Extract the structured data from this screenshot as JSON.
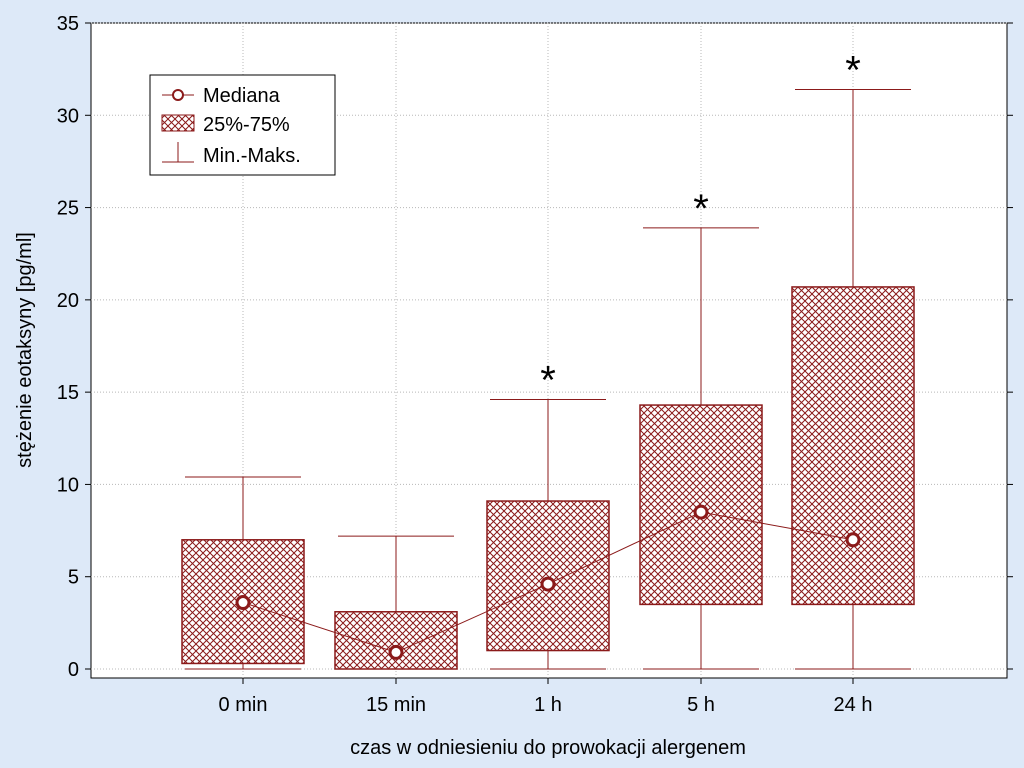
{
  "chart_data": {
    "type": "box",
    "xlabel": "czas w odniesieniu do prowokacji alergenem",
    "ylabel": "stężenie eotaksyny [pg/ml]",
    "ylim": [
      0,
      35
    ],
    "yticks": [
      "0",
      "5",
      "10",
      "15",
      "20",
      "25",
      "30",
      "35"
    ],
    "grid": true,
    "legend_position": "top-left",
    "legend": {
      "median": "Mediana",
      "box": "25%-75%",
      "whisker": "Min.-Maks."
    },
    "significance_marker": "*",
    "color": "#8b1a1a",
    "categories": [
      "0 min",
      "15 min",
      "1 h",
      "5 h",
      "24 h"
    ],
    "series": [
      {
        "category": "0 min",
        "min": 0,
        "q1": 0.3,
        "median": 3.6,
        "q3": 7.0,
        "max": 10.4,
        "significant": false
      },
      {
        "category": "15 min",
        "min": 0,
        "q1": 0,
        "median": 0.9,
        "q3": 3.1,
        "max": 7.2,
        "significant": false
      },
      {
        "category": "1 h",
        "min": 0,
        "q1": 1.0,
        "median": 4.6,
        "q3": 9.1,
        "max": 14.6,
        "significant": true
      },
      {
        "category": "5 h",
        "min": 0,
        "q1": 3.5,
        "median": 8.5,
        "q3": 14.3,
        "max": 23.9,
        "significant": true
      },
      {
        "category": "24 h",
        "min": 0,
        "q1": 3.5,
        "median": 7.0,
        "q3": 20.7,
        "max": 31.4,
        "significant": true
      }
    ]
  }
}
